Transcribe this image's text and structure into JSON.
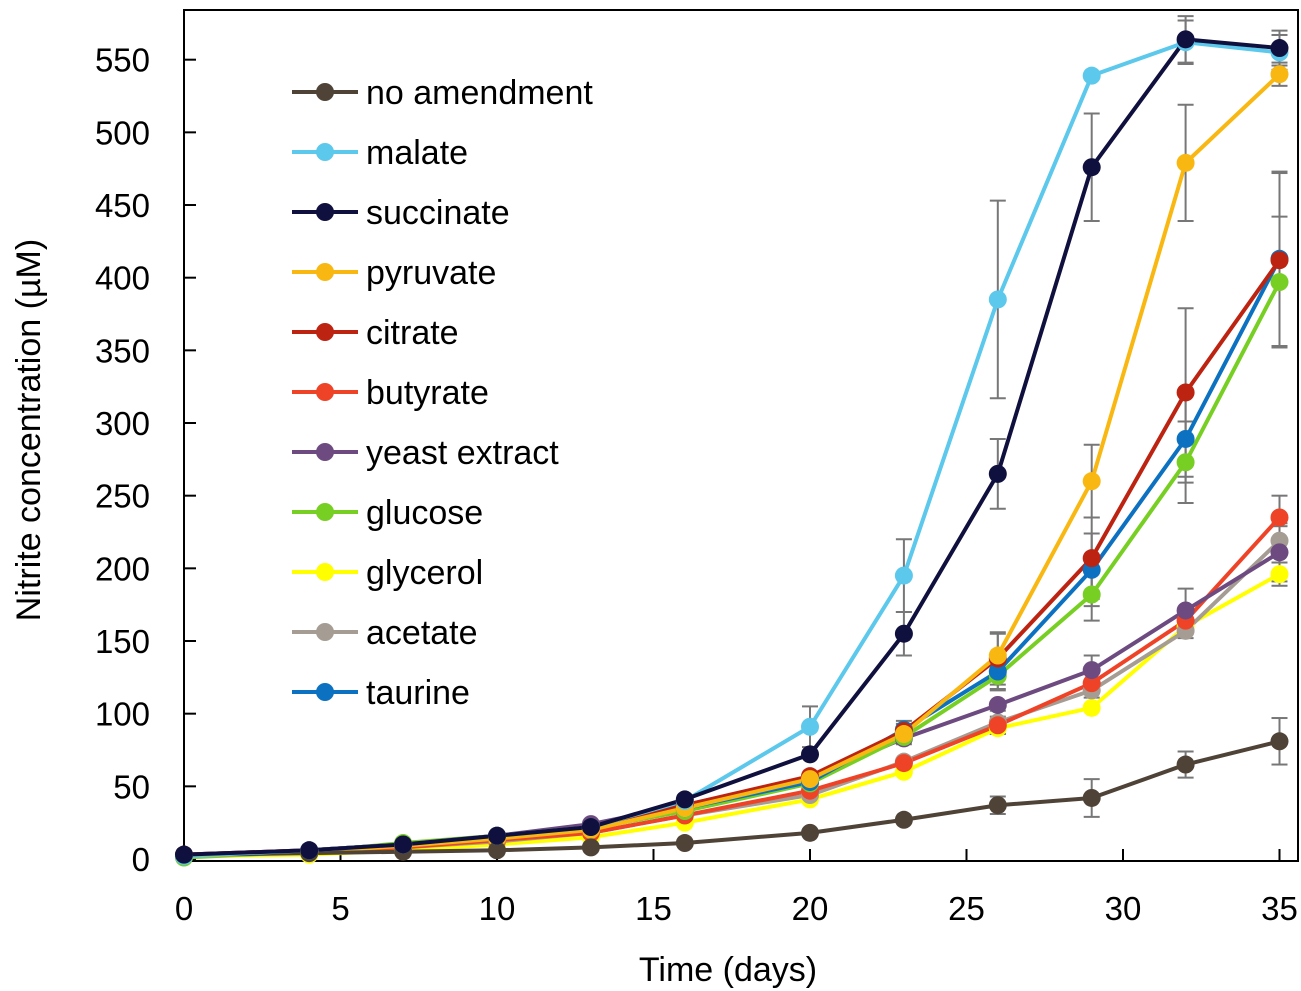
{
  "chart_data": {
    "type": "line",
    "title": "",
    "xlabel": "Time (days)",
    "ylabel": "Nitrite concentration (µM)",
    "xlim": [
      0,
      35
    ],
    "ylim": [
      0,
      550
    ],
    "xticks": [
      0,
      5,
      10,
      15,
      20,
      25,
      30,
      35
    ],
    "yticks": [
      0,
      50,
      100,
      150,
      200,
      250,
      300,
      350,
      400,
      450,
      500,
      550
    ],
    "xtick_labels": [
      "0",
      "5",
      "10",
      "15",
      "20",
      "25",
      "30",
      "35"
    ],
    "ytick_labels": [
      "0",
      "50",
      "100",
      "150",
      "200",
      "250",
      "300",
      "350",
      "400",
      "450",
      "500",
      "550"
    ],
    "grid": false,
    "legend": "top-left",
    "x": [
      0,
      4,
      7,
      10,
      13,
      16,
      20,
      23,
      26,
      29,
      32,
      35
    ],
    "series": [
      {
        "name": "no amendment",
        "color": "#4f4337",
        "values": [
          3,
          4,
          5,
          6,
          8,
          11,
          18,
          27,
          37,
          42,
          65,
          81
        ],
        "error": [
          0,
          0,
          0,
          0,
          0,
          0,
          0,
          2,
          6,
          13,
          9,
          16
        ]
      },
      {
        "name": "malate",
        "color": "#5bc8ec",
        "values": [
          2,
          6,
          10,
          16,
          22,
          40,
          91,
          195,
          385,
          539,
          562,
          555
        ],
        "error": [
          0,
          0,
          0,
          0,
          0,
          0,
          14,
          25,
          68,
          0,
          15,
          12
        ]
      },
      {
        "name": "succinate",
        "color": "#10103f",
        "values": [
          3,
          6,
          10,
          16,
          22,
          41,
          72,
          155,
          265,
          476,
          564,
          558
        ],
        "error": [
          0,
          0,
          0,
          0,
          0,
          0,
          0,
          15,
          24,
          37,
          16,
          12
        ]
      },
      {
        "name": "pyruvate",
        "color": "#f9b712",
        "values": [
          2,
          5,
          9,
          14,
          20,
          35,
          55,
          86,
          140,
          260,
          479,
          540
        ],
        "error": [
          0,
          0,
          0,
          0,
          0,
          0,
          0,
          5,
          15,
          25,
          40,
          8
        ]
      },
      {
        "name": "citrate",
        "color": "#bd2311",
        "values": [
          3,
          6,
          10,
          16,
          22,
          37,
          57,
          88,
          138,
          207,
          321,
          412
        ],
        "error": [
          0,
          0,
          0,
          0,
          0,
          0,
          0,
          5,
          18,
          28,
          58,
          60
        ]
      },
      {
        "name": "butyrate",
        "color": "#ef4328",
        "values": [
          2,
          5,
          8,
          13,
          18,
          30,
          47,
          66,
          92,
          121,
          164,
          235
        ],
        "error": [
          0,
          0,
          0,
          0,
          0,
          0,
          0,
          0,
          6,
          10,
          8,
          15
        ]
      },
      {
        "name": "yeast extract",
        "color": "#6d4b80",
        "values": [
          3,
          6,
          10,
          16,
          24,
          37,
          56,
          83,
          106,
          130,
          171,
          211
        ],
        "error": [
          0,
          0,
          0,
          0,
          0,
          0,
          0,
          0,
          0,
          10,
          15,
          20
        ]
      },
      {
        "name": "glucose",
        "color": "#78cf23",
        "values": [
          1,
          5,
          11,
          16,
          21,
          33,
          52,
          84,
          126,
          182,
          273,
          397
        ],
        "error": [
          0,
          0,
          0,
          0,
          0,
          0,
          0,
          5,
          10,
          18,
          28,
          45
        ]
      },
      {
        "name": "glycerol",
        "color": "#ffff00",
        "values": [
          2,
          3,
          6,
          10,
          15,
          25,
          41,
          60,
          90,
          104,
          160,
          196
        ],
        "error": [
          0,
          0,
          0,
          0,
          0,
          0,
          0,
          0,
          0,
          0,
          0,
          8
        ]
      },
      {
        "name": "acetate",
        "color": "#a59c93",
        "values": [
          2,
          5,
          8,
          12,
          18,
          30,
          44,
          67,
          94,
          116,
          157,
          219
        ],
        "error": [
          0,
          0,
          0,
          0,
          0,
          0,
          0,
          0,
          8,
          12,
          5,
          10
        ]
      },
      {
        "name": "taurine",
        "color": "#0b71c0",
        "values": [
          2,
          6,
          10,
          15,
          21,
          35,
          53,
          89,
          129,
          199,
          289,
          413
        ],
        "error": [
          0,
          0,
          0,
          0,
          0,
          0,
          0,
          6,
          12,
          25,
          30,
          60
        ]
      }
    ]
  }
}
